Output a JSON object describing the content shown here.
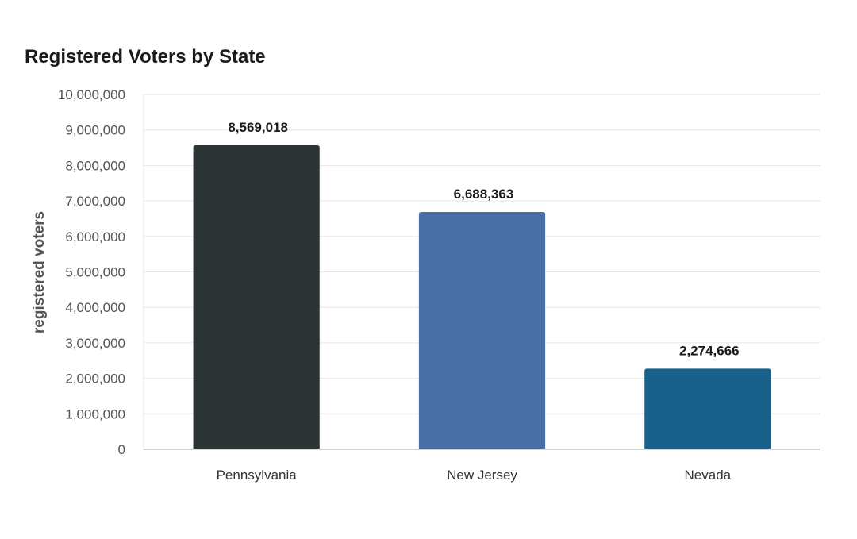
{
  "chart_data": {
    "type": "bar",
    "title": "Registered Voters by State",
    "xlabel": "",
    "ylabel": "registered voters",
    "categories": [
      "Pennsylvania",
      "New Jersey",
      "Nevada"
    ],
    "values": [
      8569018,
      6688363,
      2274666
    ],
    "value_labels": [
      "8,569,018",
      "6,688,363",
      "2,274,666"
    ],
    "colors": [
      "#2d3436",
      "#4a6fa5",
      "#19608a"
    ],
    "ylim": [
      0,
      10000000
    ],
    "yticks": [
      0,
      1000000,
      2000000,
      3000000,
      4000000,
      5000000,
      6000000,
      7000000,
      8000000,
      9000000,
      10000000
    ],
    "ytick_labels": [
      "0",
      "1,000,000",
      "2,000,000",
      "3,000,000",
      "4,000,000",
      "5,000,000",
      "6,000,000",
      "7,000,000",
      "8,000,000",
      "9,000,000",
      "10,000,000"
    ],
    "grid": true,
    "legend": "none"
  }
}
